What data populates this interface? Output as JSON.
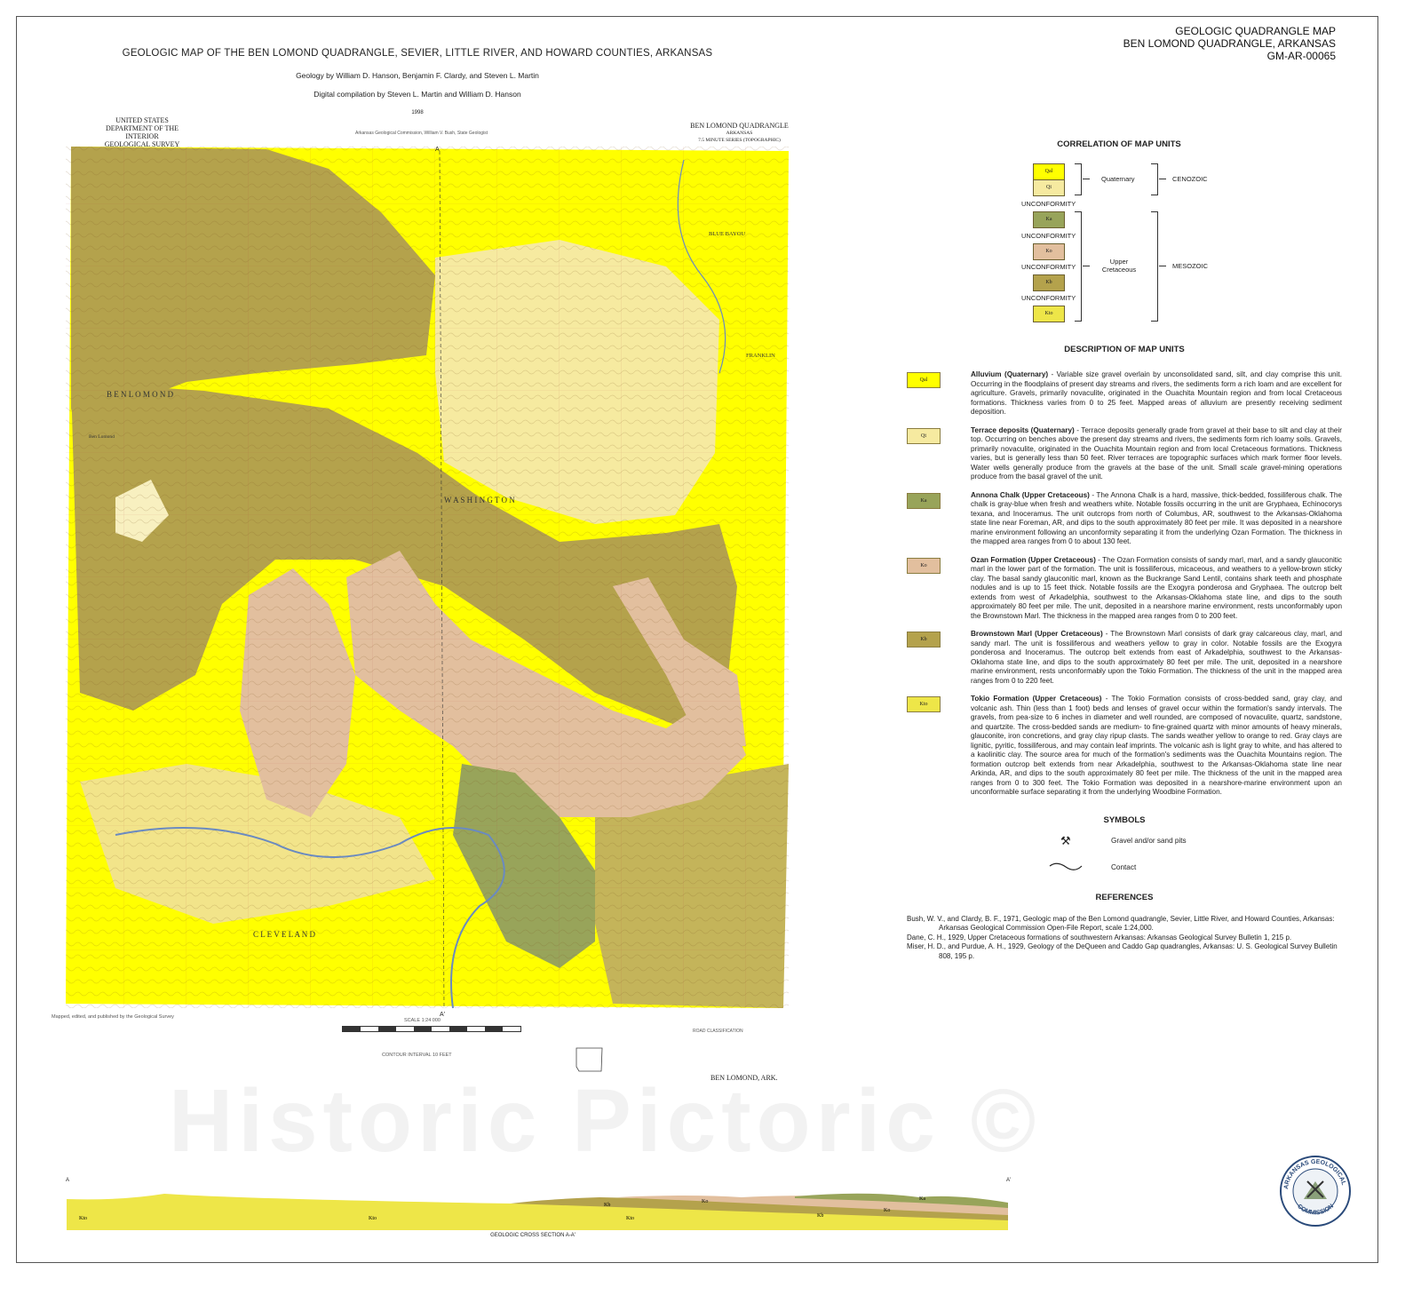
{
  "header": {
    "series": "GEOLOGIC QUADRANGLE MAP",
    "quadrangle": "BEN LOMOND QUADRANGLE, ARKANSAS",
    "map_id": "GM-AR-00065",
    "title": "GEOLOGIC MAP OF THE BEN LOMOND QUADRANGLE, SEVIER, LITTLE RIVER, AND HOWARD COUNTIES, ARKANSAS",
    "geology_by": "Geology by William D. Hanson, Benjamin F. Clardy, and Steven L. Martin",
    "compilation": "Digital compilation by Steven L. Martin and William D. Hanson",
    "year": "1998"
  },
  "map": {
    "agency_lines": [
      "UNITED STATES",
      "DEPARTMENT OF THE INTERIOR",
      "GEOLOGICAL SURVEY"
    ],
    "commission_line": "Arkansas Geological Commission, William V. Bush, State Geologist",
    "quad_lines": [
      "BEN LOMOND QUADRANGLE",
      "ARKANSAS",
      "7.5 MINUTE SERIES (TOPOGRAPHIC)"
    ],
    "place_labels": [
      "B E N   L O M O N D",
      "W A S H I N G T O N",
      "C L E V E L A N D",
      "BLUE BAYOU",
      "FRANKLIN",
      "Ben Lomond"
    ],
    "section_marks": [
      "A",
      "A'"
    ],
    "scale": "SCALE 1:24 000",
    "contour": "CONTOUR INTERVAL 10 FEET",
    "credit_line": "Mapped, edited, and published by the Geological Survey",
    "road_classification": "ROAD CLASSIFICATION",
    "bottom_name": "BEN LOMOND, ARK.",
    "colors": {
      "Qal": "#ffff00",
      "Qt": "#f6eaa0",
      "Ka": "#98a45a",
      "Ko": "#e2bf9e",
      "Kb": "#b4a24c",
      "Kto": "#eee648"
    }
  },
  "correlation": {
    "heading": "CORRELATION OF MAP UNITS",
    "units": [
      "Qal",
      "Qt",
      "Ka",
      "Ko",
      "Kb",
      "Kto"
    ],
    "unconformity": "UNCONFORMITY",
    "quaternary": "Quaternary",
    "cenozoic": "CENOZOIC",
    "upper_cretaceous": "Upper Cretaceous",
    "mesozoic": "MESOZOIC"
  },
  "description": {
    "heading": "DESCRIPTION OF MAP UNITS",
    "units": [
      {
        "symbol": "Qal",
        "name": "Alluvium (Quaternary)",
        "text": " - Variable size gravel overlain by unconsolidated sand, silt, and clay comprise this unit.  Occurring in the floodplains of present day streams and rivers, the sediments form a rich loam and are excellent for agriculture.  Gravels, primarily novaculite, originated in the Ouachita Mountain region and from local Cretaceous formations.  Thickness varies from 0 to 25 feet.  Mapped areas of alluvium are presently receiving sediment deposition."
      },
      {
        "symbol": "Qt",
        "name": "Terrace deposits (Quaternary)",
        "text": " - Terrace deposits generally grade from gravel at their base to silt and clay at their top.  Occurring on benches above the present day streams and rivers, the sediments form rich loamy soils.  Gravels, primarily novaculite, originated in the Ouachita Mountain region and from local Cretaceous formations.  Thickness varies, but is generally less than 50 feet.  River terraces are topographic surfaces which mark former floor levels.  Water wells generally produce from the gravels at the base of the unit.  Small scale gravel-mining operations produce from the basal gravel of the unit."
      },
      {
        "symbol": "Ka",
        "name": "Annona Chalk (Upper Cretaceous)",
        "text": " - The Annona Chalk is a hard, massive, thick-bedded, fossiliferous chalk.  The chalk is gray-blue when fresh and weathers white.  Notable fossils occurring in the unit are Gryphaea, Echinocorys texana, and Inoceramus.  The unit outcrops from north of Columbus, AR, southwest to the Arkansas-Oklahoma state line near Foreman, AR, and dips to the south approximately 80 feet per mile.  It was deposited in a nearshore marine environment following an unconformity separating it from the underlying Ozan Formation.  The thickness in the mapped area ranges from 0 to about 130 feet."
      },
      {
        "symbol": "Ko",
        "name": "Ozan Formation (Upper Cretaceous)",
        "text": " - The Ozan Formation consists of sandy marl, marl, and a sandy glauconitic marl in the lower part of the formation.  The unit is fossiliferous, micaceous, and weathers to a yellow-brown sticky clay.  The basal sandy glauconitic marl, known as the Buckrange Sand Lentil, contains shark teeth and phosphate nodules and is up to 15 feet thick.  Notable fossils are the Exogyra ponderosa and Gryphaea.  The outcrop belt extends from west of Arkadelphia, southwest to the Arkansas-Oklahoma state line, and dips to the south approximately 80 feet per mile.  The unit, deposited in a nearshore marine environment, rests unconformably upon the Brownstown Marl.  The thickness in the mapped area ranges from 0 to 200 feet."
      },
      {
        "symbol": "Kb",
        "name": "Brownstown Marl (Upper Cretaceous)",
        "text": " - The Brownstown Marl consists of dark gray calcareous clay, marl, and sandy marl.  The unit is fossiliferous and weathers yellow to gray in color.  Notable fossils are the Exogyra ponderosa and Inoceramus.  The outcrop belt extends from east of Arkadelphia, southwest to the Arkansas-Oklahoma state line, and dips to the south approximately 80 feet per mile.  The unit, deposited in a nearshore marine environment, rests unconformably upon the Tokio Formation.  The thickness of the unit in the mapped area ranges from 0 to 220 feet."
      },
      {
        "symbol": "Kto",
        "name": "Tokio Formation (Upper Cretaceous)",
        "text": " - The Tokio Formation consists of cross-bedded sand, gray clay, and volcanic ash.  Thin (less than 1 foot) beds and lenses of gravel occur within the formation's sandy intervals.  The gravels, from pea-size to 6 inches in diameter and well rounded, are composed of novaculite, quartz, sandstone, and quartzite.  The cross-bedded sands are medium- to fine-grained quartz with minor amounts of heavy minerals, glauconite, iron concretions, and gray clay ripup clasts.  The sands weather yellow to orange to red.  Gray clays are lignitic, pyritic, fossiliferous, and may contain leaf imprints.  The volcanic ash is light gray to white, and has altered to a kaolinitic clay.  The source area for much of the formation's sediments was the Ouachita Mountains region.  The formation outcrop belt extends from near Arkadelphia, southwest to the Arkansas-Oklahoma state line near Arkinda, AR, and dips to the south approximately 80 feet per mile.  The thickness of the unit in the mapped area ranges from 0 to 300 feet.  The Tokio Formation was deposited in a nearshore-marine environment upon an unconformable surface separating it from the underlying Woodbine Formation."
      }
    ]
  },
  "symbols": {
    "heading": "SYMBOLS",
    "items": [
      {
        "icon": "crossed-hammers-icon",
        "label": "Gravel and/or sand pits"
      },
      {
        "icon": "contact-line-icon",
        "label": "Contact"
      }
    ]
  },
  "references": {
    "heading": "REFERENCES",
    "items": [
      "Bush, W. V., and Clardy, B. F., 1971, Geologic map of the Ben Lomond quadrangle, Sevier, Little River, and Howard Counties, Arkansas:  Arkansas Geological Commission Open-File Report, scale 1:24,000.",
      "Dane, C. H., 1929, Upper Cretaceous formations of southwestern Arkansas:  Arkansas Geological Survey Bulletin 1, 215 p.",
      "Miser, H. D., and Purdue, A. H., 1929, Geology of the DeQueen and Caddo Gap quadrangles, Arkansas:  U. S. Geological Survey Bulletin 808, 195 p."
    ]
  },
  "cross_section": {
    "title": "GEOLOGIC CROSS SECTION A-A'",
    "start": "A",
    "end": "A'",
    "labels": [
      "Kto",
      "Kto",
      "Kto",
      "Kb",
      "Kb",
      "Ko",
      "Ko",
      "Ka"
    ]
  },
  "seal": {
    "text": "ARKANSAS GEOLOGICAL COMMISSION"
  },
  "watermark": "Historic Pictoric ©"
}
